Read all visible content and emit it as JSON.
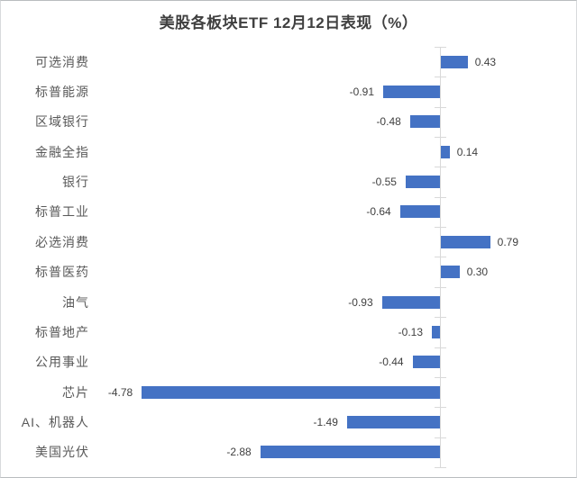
{
  "frame": {
    "background": "#FFFFFF",
    "border_color": "#C9CDD0"
  },
  "chart_data": {
    "type": "bar",
    "orientation": "horizontal",
    "title": "美股各板块ETF 12月12日表现（%）",
    "categories": [
      "可选消费",
      "标普能源",
      "区域银行",
      "金融全指",
      "银行",
      "标普工业",
      "必选消费",
      "标普医药",
      "油气",
      "标普地产",
      "公用事业",
      "芯片",
      "AI、机器人",
      "美国光伏"
    ],
    "values": [
      0.43,
      -0.91,
      -0.48,
      0.14,
      -0.55,
      -0.64,
      0.79,
      0.3,
      -0.93,
      -0.13,
      -0.44,
      -4.78,
      -1.49,
      -2.88
    ],
    "value_labels": [
      "0.43",
      "-0.91",
      "-0.48",
      "0.14",
      "-0.55",
      "-0.64",
      "0.79",
      "0.30",
      "-0.93",
      "-0.13",
      "-0.44",
      "-4.78",
      "-1.49",
      "-2.88"
    ],
    "bar_color": "#4472C4",
    "axis_line_color": "#D9D9D9",
    "title_color": "#404040",
    "category_label_color": "#595959",
    "value_label_color": "#404040",
    "grid": "off",
    "legend": "none",
    "value_axis_tick_labels": "none"
  }
}
